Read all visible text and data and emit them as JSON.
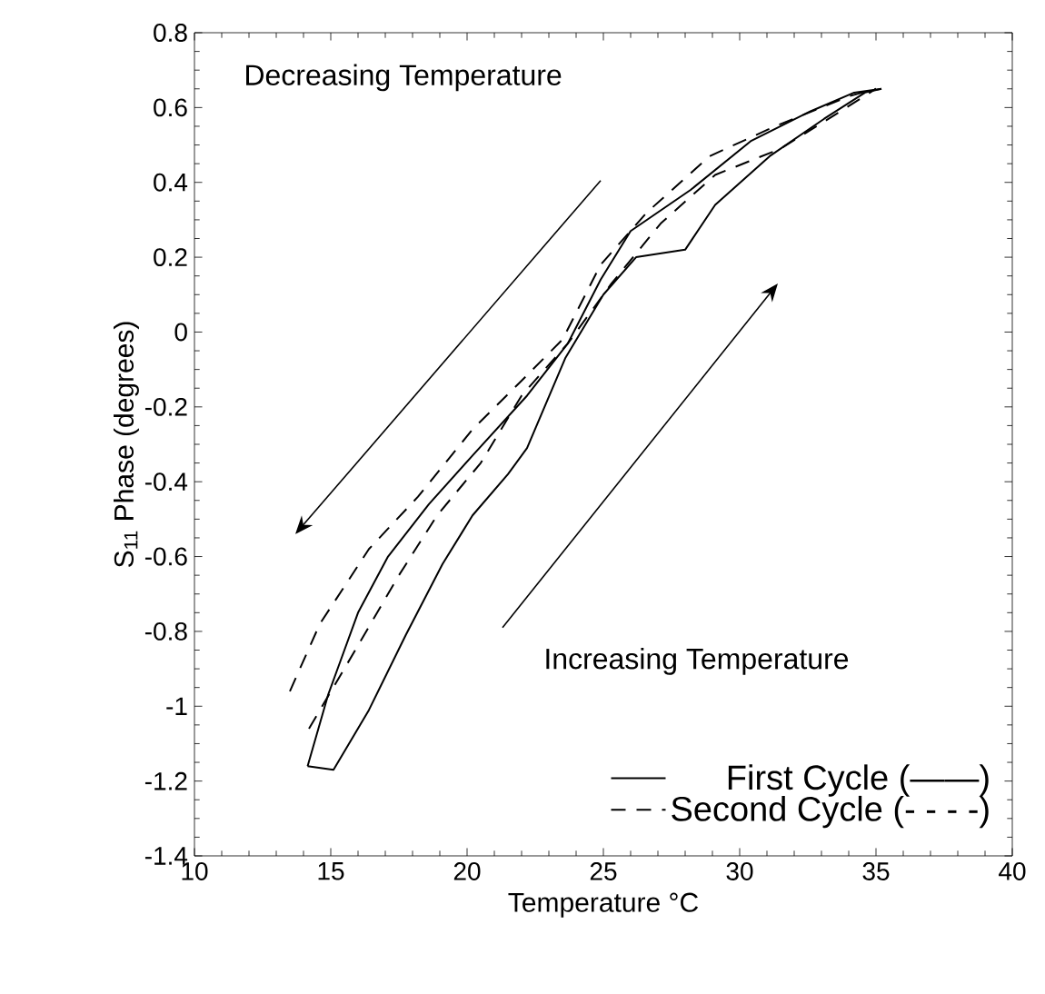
{
  "chart_data": {
    "type": "line",
    "xlabel": "Temperature °C",
    "ylabel": "S$_{11}$ Phase (degrees)",
    "xlim": [
      10,
      40
    ],
    "ylim": [
      -1.4,
      0.8
    ],
    "xticks": [
      10,
      15,
      20,
      25,
      30,
      35,
      40
    ],
    "yticks": [
      -1.4,
      -1.2,
      -1,
      -0.8,
      -0.6,
      -0.4,
      -0.2,
      0,
      0.2,
      0.4,
      0.6,
      0.8
    ],
    "grid": false,
    "legend": "bottom right",
    "marker": "none",
    "annotations": [
      "Decreasing Temperature",
      "Increasing Temperature"
    ],
    "series": [
      {
        "name": "First Cycle (——)",
        "color": "#000000",
        "line_style": "solid",
        "x": [
          14.15,
          15.1,
          16.4,
          17.75,
          19.1,
          20.2,
          21.5,
          22.2,
          23.6,
          25,
          26.2,
          28,
          29.1,
          31.1,
          33.1,
          34.6,
          35.2
        ],
        "values": [
          -1.16,
          -1.17,
          -1.01,
          -0.81,
          -0.62,
          -0.49,
          -0.38,
          -0.31,
          -0.07,
          0.1,
          0.2,
          0.22,
          0.34,
          0.47,
          0.57,
          0.64,
          0.65
        ]
      },
      {
        "color": "#000000",
        "line_style": "solid",
        "x": [
          14.15,
          14.9,
          15.3,
          16,
          17.1,
          18.6,
          20.2,
          22.2,
          23.7,
          24.9,
          26,
          28.2,
          30.4,
          32.6,
          34.2,
          35.2
        ],
        "values": [
          -1.16,
          -0.97,
          -0.89,
          -0.75,
          -0.6,
          -0.46,
          -0.33,
          -0.17,
          -0.03,
          0.14,
          0.27,
          0.38,
          0.51,
          0.59,
          0.64,
          0.65
        ]
      },
      {
        "name": "Second Cycle (- - - -)",
        "color": "#000000",
        "line_style": "dashed",
        "x": [
          13.5,
          14.6,
          16.4,
          18.2,
          20.2,
          22,
          23.5,
          24.9,
          26.6,
          28.9,
          31.3,
          34,
          35
        ],
        "values": [
          -0.96,
          -0.78,
          -0.58,
          -0.44,
          -0.26,
          -0.13,
          -0.02,
          0.18,
          0.32,
          0.47,
          0.55,
          0.63,
          0.65
        ]
      },
      {
        "color": "#000000",
        "line_style": "dashed",
        "x": [
          14.2,
          15.9,
          17.5,
          18.9,
          20.5,
          22,
          23.7,
          25.3,
          27.1,
          29.1,
          31.5,
          33.7,
          35
        ],
        "values": [
          -1.06,
          -0.85,
          -0.65,
          -0.49,
          -0.35,
          -0.17,
          -0.03,
          0.13,
          0.29,
          0.42,
          0.49,
          0.59,
          0.65
        ]
      }
    ]
  }
}
